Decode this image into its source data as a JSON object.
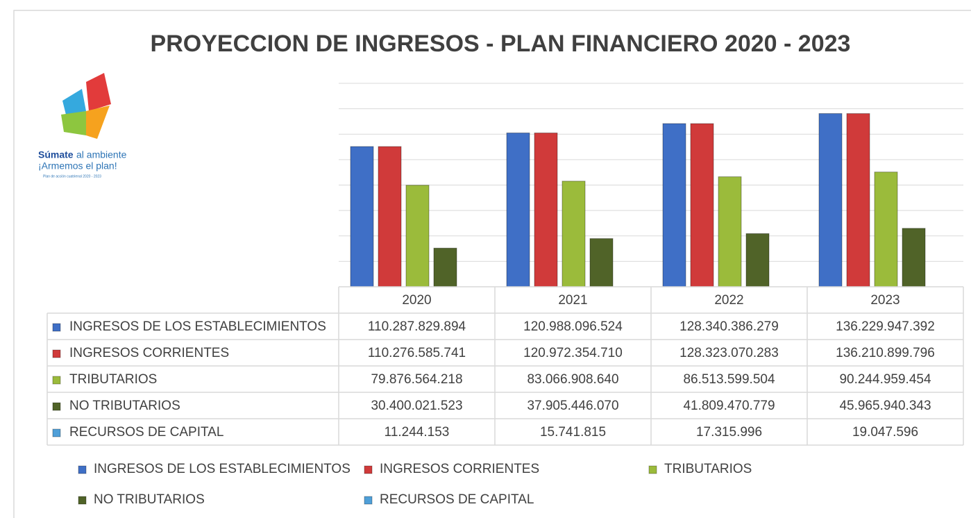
{
  "chart_data": {
    "type": "bar",
    "title": "PROYECCION DE INGRESOS - PLAN FINANCIERO 2020 - 2023",
    "annotations": [
      "Súmate",
      "al ambiente",
      "¡Armemos el plan!",
      "Plan de acción cuatrienal 2020 - 2023"
    ],
    "categories": [
      "2020",
      "2021",
      "2022",
      "2023"
    ],
    "series": [
      {
        "name": "INGRESOS DE LOS ESTABLECIMIENTOS",
        "color": "#3f6fc6",
        "values": [
          110287829894,
          120988096524,
          128340386279,
          136229947392
        ],
        "value_labels": [
          "110.287.829.894",
          "120.988.096.524",
          "128.340.386.279",
          "136.229.947.392"
        ]
      },
      {
        "name": "INGRESOS CORRIENTES",
        "color": "#d03a3a",
        "values": [
          110276585741,
          120972354710,
          128323070283,
          136210899796
        ],
        "value_labels": [
          "110.276.585.741",
          "120.972.354.710",
          "128.323.070.283",
          "136.210.899.796"
        ]
      },
      {
        "name": "TRIBUTARIOS",
        "color": "#9bbb3b",
        "values": [
          79876564218,
          83066908640,
          86513599504,
          90244959454
        ],
        "value_labels": [
          "79.876.564.218",
          "83.066.908.640",
          "86.513.599.504",
          "90.244.959.454"
        ]
      },
      {
        "name": "NO TRIBUTARIOS",
        "color": "#506328",
        "values": [
          30400021523,
          37905446070,
          41809470779,
          45965940343
        ],
        "value_labels": [
          "30.400.021.523",
          "37.905.446.070",
          "41.809.470.779",
          "45.965.940.343"
        ]
      },
      {
        "name": "RECURSOS DE CAPITAL",
        "color": "#4f9fd8",
        "values": [
          11244153,
          15741815,
          17315996,
          19047596
        ],
        "value_labels": [
          "11.244.153",
          "15.741.815",
          "17.315.996",
          "19.047.596"
        ]
      }
    ],
    "ylim": [
      0,
      160000000000
    ],
    "yticks": [
      0,
      20000000000,
      40000000000,
      60000000000,
      80000000000,
      100000000000,
      120000000000,
      140000000000,
      160000000000
    ],
    "grid": true
  }
}
